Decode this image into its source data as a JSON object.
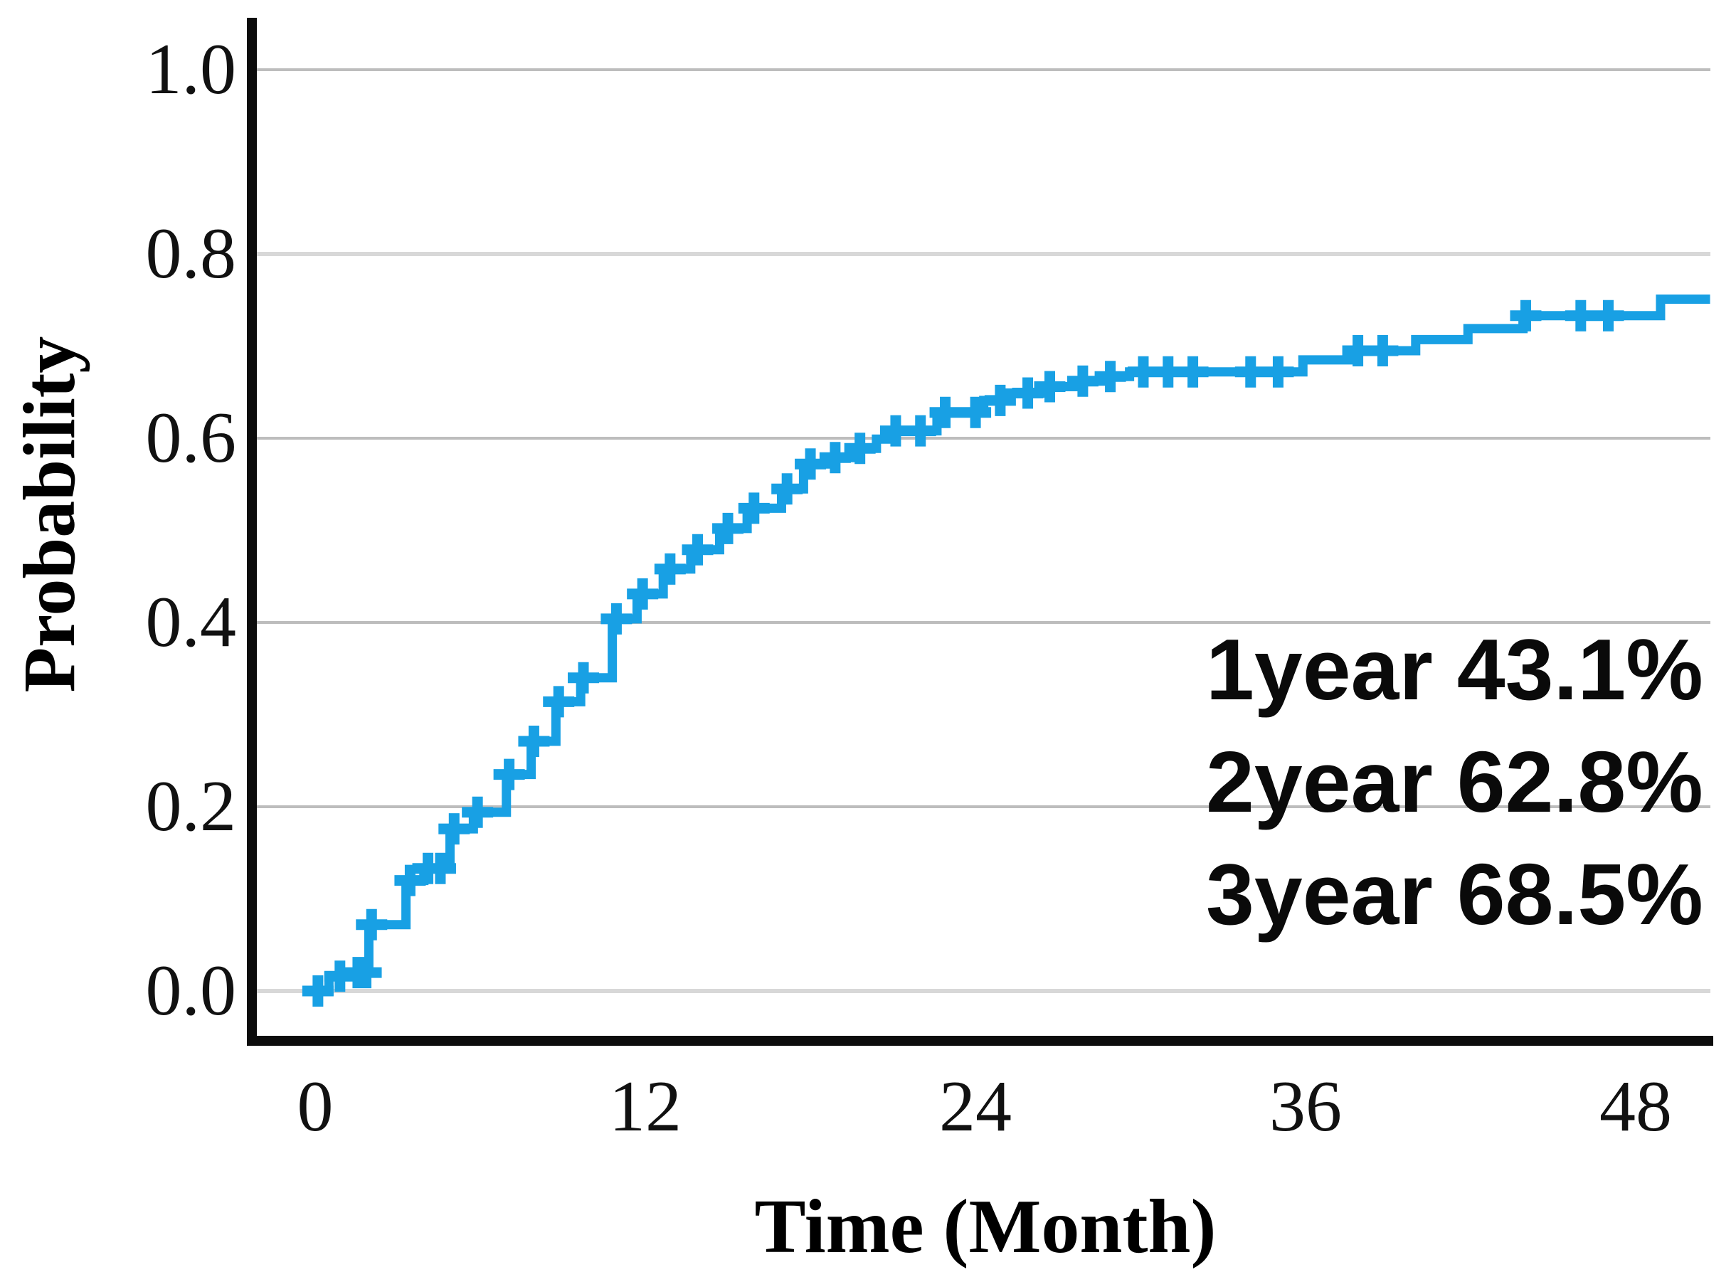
{
  "chart_data": {
    "type": "line",
    "subtype": "kaplan-meier-cumulative-step",
    "title": "",
    "xlabel": "Time (Month)",
    "ylabel": "Probability",
    "x_tick_labels": [
      "0",
      "12",
      "24",
      "36",
      "48"
    ],
    "x_ticks": [
      0,
      12,
      24,
      36,
      48
    ],
    "y_tick_labels": [
      "0.0",
      "0.2",
      "0.4",
      "0.6",
      "0.8",
      "1.0"
    ],
    "y_ticks": [
      0.0,
      0.2,
      0.4,
      0.6,
      0.8,
      1.0
    ],
    "xlim": [
      -2.1,
      50.7
    ],
    "ylim": [
      -0.05,
      1.06
    ],
    "grid": true,
    "legend_position": "none",
    "colors": {
      "curve": "#18a0e4",
      "grid_light": "#d8d8d8",
      "grid_dark": "#bdbdbd",
      "axis": "#0c0c0c",
      "text": "#000000"
    },
    "series": [
      {
        "name": "cumulative probability",
        "color": "#18a0e4",
        "steps": [
          [
            0,
            0.0
          ],
          [
            0.5,
            0.016
          ],
          [
            1.4,
            0.02
          ],
          [
            1.95,
            0.072
          ],
          [
            3.3,
            0.12
          ],
          [
            3.95,
            0.133
          ],
          [
            4.9,
            0.176
          ],
          [
            5.75,
            0.194
          ],
          [
            6.95,
            0.235
          ],
          [
            7.85,
            0.271
          ],
          [
            8.75,
            0.314
          ],
          [
            9.65,
            0.34
          ],
          [
            10.8,
            0.404
          ],
          [
            11.7,
            0.431
          ],
          [
            12.65,
            0.458
          ],
          [
            13.65,
            0.479
          ],
          [
            14.7,
            0.502
          ],
          [
            15.7,
            0.524
          ],
          [
            16.95,
            0.545
          ],
          [
            17.75,
            0.572
          ],
          [
            18.6,
            0.579
          ],
          [
            19.6,
            0.589
          ],
          [
            20.4,
            0.599
          ],
          [
            20.9,
            0.608
          ],
          [
            22.6,
            0.628
          ],
          [
            24.3,
            0.641
          ],
          [
            25.2,
            0.649
          ],
          [
            26.4,
            0.656
          ],
          [
            27.6,
            0.662
          ],
          [
            28.7,
            0.667
          ],
          [
            29.6,
            0.672
          ],
          [
            35.9,
            0.685
          ],
          [
            37.7,
            0.695
          ],
          [
            40,
            0.707
          ],
          [
            41.9,
            0.719
          ],
          [
            43.9,
            0.733
          ],
          [
            48.9,
            0.751
          ]
        ],
        "curve_end_month": 50.7,
        "censor_marks": [
          [
            0.1,
            0.0
          ],
          [
            0.9,
            0.016
          ],
          [
            1.55,
            0.02
          ],
          [
            1.85,
            0.02
          ],
          [
            2.05,
            0.072
          ],
          [
            3.45,
            0.12
          ],
          [
            4.1,
            0.133
          ],
          [
            4.55,
            0.133
          ],
          [
            5.05,
            0.176
          ],
          [
            5.9,
            0.194
          ],
          [
            7.05,
            0.235
          ],
          [
            7.95,
            0.271
          ],
          [
            8.85,
            0.314
          ],
          [
            9.75,
            0.34
          ],
          [
            10.95,
            0.404
          ],
          [
            11.9,
            0.431
          ],
          [
            12.9,
            0.458
          ],
          [
            13.9,
            0.479
          ],
          [
            15,
            0.502
          ],
          [
            15.95,
            0.524
          ],
          [
            17.15,
            0.545
          ],
          [
            18,
            0.572
          ],
          [
            18.9,
            0.579
          ],
          [
            19.8,
            0.589
          ],
          [
            21.1,
            0.608
          ],
          [
            22,
            0.608
          ],
          [
            22.9,
            0.628
          ],
          [
            24,
            0.628
          ],
          [
            24.9,
            0.641
          ],
          [
            25.9,
            0.649
          ],
          [
            26.7,
            0.656
          ],
          [
            27.9,
            0.662
          ],
          [
            28.9,
            0.667
          ],
          [
            30.1,
            0.672
          ],
          [
            31,
            0.672
          ],
          [
            31.9,
            0.672
          ],
          [
            34,
            0.672
          ],
          [
            35,
            0.672
          ],
          [
            37.9,
            0.695
          ],
          [
            38.8,
            0.695
          ],
          [
            44,
            0.733
          ],
          [
            46,
            0.733
          ],
          [
            47,
            0.733
          ]
        ]
      }
    ],
    "annotations": {
      "line1": "1year 43.1%",
      "line2": "2year 62.8%",
      "line3": "3year 68.5%"
    }
  }
}
